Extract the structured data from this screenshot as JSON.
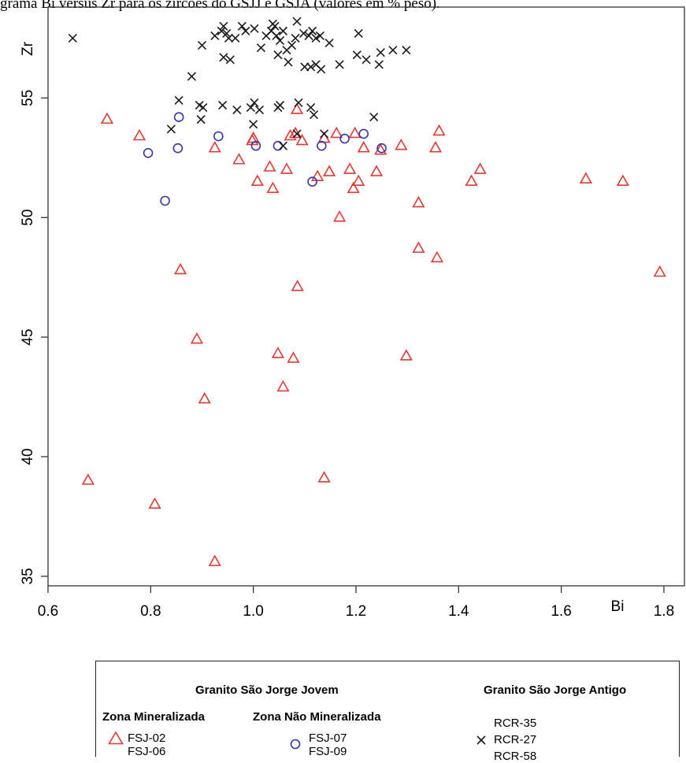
{
  "caption": "grama Bi versus Zr para os zircões do GSJJ e GSJA (valores em % peso).",
  "chart_data": {
    "type": "scatter",
    "xlabel": "Bi",
    "ylabel": "Zr",
    "xlim": [
      0.6,
      1.84
    ],
    "ylim": [
      34.6,
      58.8
    ],
    "xticks": [
      "0.6",
      "0.8",
      "1.0",
      "1.2",
      "1.4",
      "1.6",
      "1.8"
    ],
    "yticks": [
      "35",
      "40",
      "45",
      "50",
      "55"
    ],
    "grid": false,
    "series": [
      {
        "name": "Zona Mineralizada",
        "marker": "triangle",
        "color": "#e03a32",
        "points": [
          [
            0.715,
            54.1
          ],
          [
            0.778,
            53.4
          ],
          [
            0.925,
            52.9
          ],
          [
            0.972,
            52.4
          ],
          [
            0.998,
            53.2
          ],
          [
            1.0,
            53.3
          ],
          [
            1.008,
            51.5
          ],
          [
            1.032,
            52.1
          ],
          [
            1.038,
            51.2
          ],
          [
            1.065,
            52.0
          ],
          [
            1.072,
            53.4
          ],
          [
            1.082,
            53.5
          ],
          [
            1.085,
            54.5
          ],
          [
            1.095,
            53.2
          ],
          [
            1.125,
            51.7
          ],
          [
            1.138,
            53.3
          ],
          [
            1.148,
            51.9
          ],
          [
            1.162,
            53.5
          ],
          [
            1.168,
            50.0
          ],
          [
            1.188,
            52.0
          ],
          [
            1.195,
            51.2
          ],
          [
            1.198,
            53.5
          ],
          [
            1.205,
            51.5
          ],
          [
            1.215,
            52.9
          ],
          [
            1.24,
            51.9
          ],
          [
            1.248,
            52.8
          ],
          [
            1.288,
            53.0
          ],
          [
            1.322,
            50.6
          ],
          [
            1.322,
            48.7
          ],
          [
            1.355,
            52.9
          ],
          [
            1.358,
            48.3
          ],
          [
            1.362,
            53.6
          ],
          [
            1.425,
            51.5
          ],
          [
            1.442,
            52.0
          ],
          [
            1.648,
            51.6
          ],
          [
            1.72,
            51.5
          ],
          [
            1.792,
            47.7
          ],
          [
            0.678,
            39.0
          ],
          [
            0.808,
            38.0
          ],
          [
            0.858,
            47.8
          ],
          [
            0.89,
            44.9
          ],
          [
            0.905,
            42.4
          ],
          [
            0.925,
            35.6
          ],
          [
            1.048,
            44.3
          ],
          [
            1.058,
            42.9
          ],
          [
            1.078,
            44.1
          ],
          [
            1.086,
            47.1
          ],
          [
            1.138,
            39.1
          ],
          [
            1.298,
            44.2
          ]
        ]
      },
      {
        "name": "Zona Não Mineralizada",
        "marker": "circle",
        "color": "#3535a8",
        "points": [
          [
            0.795,
            52.7
          ],
          [
            0.828,
            50.7
          ],
          [
            0.853,
            52.9
          ],
          [
            0.855,
            54.2
          ],
          [
            0.932,
            53.4
          ],
          [
            1.005,
            53.0
          ],
          [
            1.048,
            53.0
          ],
          [
            1.115,
            51.5
          ],
          [
            1.133,
            53.0
          ],
          [
            1.178,
            53.3
          ],
          [
            1.215,
            53.5
          ],
          [
            1.25,
            52.9
          ]
        ]
      },
      {
        "name": "Granito São Jorge Antigo",
        "marker": "cross",
        "color": "#1a1a1a",
        "points": [
          [
            0.648,
            57.5
          ],
          [
            0.88,
            55.9
          ],
          [
            0.9,
            57.2
          ],
          [
            0.925,
            57.6
          ],
          [
            0.938,
            57.8
          ],
          [
            0.942,
            58.0
          ],
          [
            0.948,
            57.7
          ],
          [
            0.952,
            57.5
          ],
          [
            0.965,
            57.5
          ],
          [
            0.978,
            58.0
          ],
          [
            0.985,
            57.8
          ],
          [
            1.002,
            57.9
          ],
          [
            1.015,
            57.1
          ],
          [
            1.025,
            57.6
          ],
          [
            1.035,
            57.8
          ],
          [
            1.038,
            58.1
          ],
          [
            1.042,
            58.0
          ],
          [
            1.045,
            57.6
          ],
          [
            1.052,
            57.4
          ],
          [
            1.058,
            57.8
          ],
          [
            1.065,
            57.0
          ],
          [
            1.075,
            57.2
          ],
          [
            1.082,
            57.5
          ],
          [
            1.085,
            58.2
          ],
          [
            1.098,
            57.7
          ],
          [
            1.108,
            57.6
          ],
          [
            1.115,
            57.8
          ],
          [
            1.122,
            57.5
          ],
          [
            1.13,
            57.6
          ],
          [
            1.148,
            57.3
          ],
          [
            1.168,
            56.4
          ],
          [
            1.202,
            56.8
          ],
          [
            1.205,
            57.7
          ],
          [
            1.22,
            56.6
          ],
          [
            1.248,
            56.9
          ],
          [
            1.272,
            57.0
          ],
          [
            1.298,
            57.0
          ],
          [
            0.942,
            56.7
          ],
          [
            0.955,
            56.6
          ],
          [
            1.048,
            56.8
          ],
          [
            1.068,
            56.5
          ],
          [
            1.1,
            56.3
          ],
          [
            1.112,
            56.3
          ],
          [
            1.122,
            56.4
          ],
          [
            1.132,
            56.2
          ],
          [
            1.245,
            56.4
          ],
          [
            0.84,
            53.7
          ],
          [
            0.855,
            54.9
          ],
          [
            0.895,
            54.7
          ],
          [
            0.898,
            54.1
          ],
          [
            0.902,
            54.6
          ],
          [
            0.94,
            54.7
          ],
          [
            0.968,
            54.5
          ],
          [
            0.995,
            54.6
          ],
          [
            1.0,
            53.9
          ],
          [
            1.002,
            54.8
          ],
          [
            1.012,
            54.5
          ],
          [
            1.048,
            54.6
          ],
          [
            1.052,
            54.7
          ],
          [
            1.058,
            53.0
          ],
          [
            1.085,
            53.5
          ],
          [
            1.088,
            54.8
          ],
          [
            1.112,
            54.6
          ],
          [
            1.118,
            54.3
          ],
          [
            1.138,
            53.5
          ],
          [
            1.235,
            54.2
          ]
        ]
      }
    ]
  },
  "legend": {
    "jovem_title": "Granito São Jorge Jovem",
    "antigo_title": "Granito São Jorge Antigo",
    "min_title": "Zona Mineralizada",
    "nmin_title": "Zona Não Mineralizada",
    "min_samples": [
      "FSJ-02",
      "FSJ-06"
    ],
    "nmin_samples": [
      "FSJ-07",
      "FSJ-09"
    ],
    "antigo_samples": [
      "RCR-35",
      "RCR-27",
      "RCR-58"
    ]
  }
}
